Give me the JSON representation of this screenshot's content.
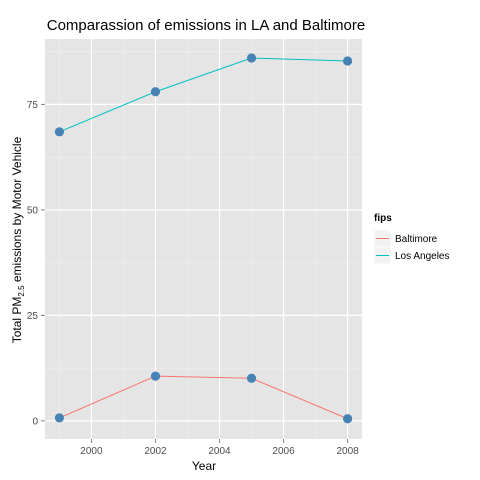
{
  "chart_data": {
    "type": "line",
    "title": "Comparassion of emissions in LA and Baltimore",
    "xlabel": "Year",
    "ylabel": {
      "main": "Total PM",
      "subscript": "2.5",
      "suffix": " emissions by Motor Vehicle"
    },
    "x": [
      1999,
      2002,
      2005,
      2008
    ],
    "xlim": [
      1998.55,
      2008.45
    ],
    "ylim": [
      -4.3,
      90.5
    ],
    "xticks": [
      2000,
      2002,
      2004,
      2006,
      2008
    ],
    "yticks": [
      0,
      25,
      50,
      75
    ],
    "grid": true,
    "legend": {
      "title": "fips",
      "placement": "right"
    },
    "series": [
      {
        "name": "Baltimore",
        "values": [
          0.7,
          10.6,
          10.1,
          0.5
        ],
        "color": "#f8766d"
      },
      {
        "name": "Los Angeles",
        "values": [
          68.5,
          78.0,
          86.0,
          85.3
        ],
        "color": "#00bfc4"
      }
    ],
    "point_color": "#4682b4",
    "panel_color": "#e5e5e5",
    "grid_color": "#ffffff"
  }
}
